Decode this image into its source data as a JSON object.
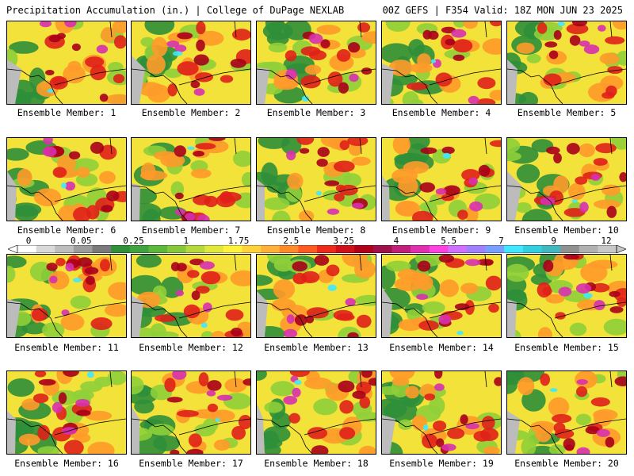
{
  "header": {
    "title": "Precipitation Accumulation (in.) | College of DuPage NEXLAB",
    "valid": "00Z GEFS | F354 Valid: 18Z MON JUN 23 2025"
  },
  "colorbar": {
    "labels": [
      "0",
      "0.05",
      "0.25",
      "1",
      "1.75",
      "2.5",
      "3.25",
      "4",
      "5.5",
      "7",
      "9",
      "12"
    ],
    "colors": [
      "#ffffff",
      "#d9d9d9",
      "#bdbdbd",
      "#9c9c9c",
      "#7a7a7a",
      "#2f8f3a",
      "#3fa33f",
      "#5cb83a",
      "#86c83a",
      "#b5d83a",
      "#e0e83a",
      "#fff23a",
      "#ffd23a",
      "#ffb03a",
      "#ff8a2a",
      "#ff5a1f",
      "#f02a1a",
      "#d0101a",
      "#b0001a",
      "#a0104a",
      "#c0207a",
      "#e030b0",
      "#ff40e0",
      "#d070ff",
      "#a080ff",
      "#7aa0ff",
      "#40e8ff",
      "#30d0e0",
      "#40b8c0",
      "#909090",
      "#b0b0b0",
      "#c8c8c8"
    ]
  },
  "panel_colors": {
    "ocean": "#bcbcbc",
    "low": "#2f8f3a",
    "mid": "#8fcf3a",
    "yellow": "#f2e23a",
    "orange": "#ff9a2a",
    "red": "#e0201a",
    "darkred": "#a8001a",
    "magenta": "#d830b0",
    "cyan": "#40e8ff",
    "gray_core": "#a0a0a0"
  },
  "panels": [
    {
      "caption": "Ensemble Member: 1"
    },
    {
      "caption": "Ensemble Member: 2"
    },
    {
      "caption": "Ensemble Member: 3"
    },
    {
      "caption": "Ensemble Member: 4"
    },
    {
      "caption": "Ensemble Member: 5"
    },
    {
      "caption": "Ensemble Member: 6"
    },
    {
      "caption": "Ensemble Member: 7"
    },
    {
      "caption": "Ensemble Member: 8"
    },
    {
      "caption": "Ensemble Member: 9"
    },
    {
      "caption": "Ensemble Member: 10"
    },
    {
      "caption": "Ensemble Member: 11"
    },
    {
      "caption": "Ensemble Member: 12"
    },
    {
      "caption": "Ensemble Member: 13"
    },
    {
      "caption": "Ensemble Member: 14"
    },
    {
      "caption": "Ensemble Member: 15"
    },
    {
      "caption": "Ensemble Member: 16"
    },
    {
      "caption": "Ensemble Member: 17"
    },
    {
      "caption": "Ensemble Member: 18"
    },
    {
      "caption": "Ensemble Member: 19"
    },
    {
      "caption": "Ensemble Member: 20"
    }
  ]
}
